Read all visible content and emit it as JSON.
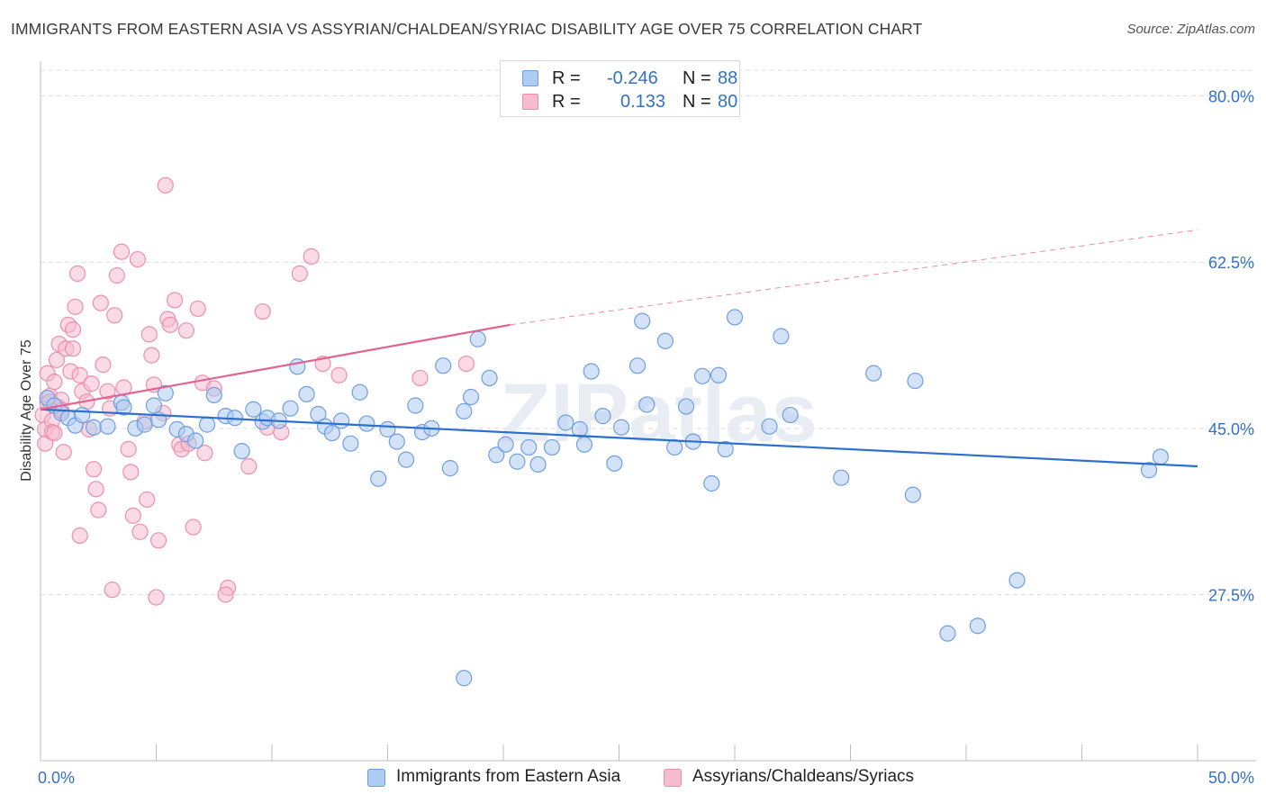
{
  "title": "IMMIGRANTS FROM EASTERN ASIA VS ASSYRIAN/CHALDEAN/SYRIAC DISABILITY AGE OVER 75 CORRELATION CHART",
  "source": "Source: ZipAtlas.com",
  "watermark": "ZIPatlas",
  "legend": {
    "r_label": "R =",
    "n_label": "N =",
    "rows": [
      {
        "r": "-0.246",
        "n": "88"
      },
      {
        "r": "0.133",
        "n": "80"
      }
    ]
  },
  "colors": {
    "blue_fill": "#aecbf1",
    "blue_stroke": "#6f9fe0",
    "blue_line": "#2b6fcf",
    "pink_fill": "#f6bccd",
    "pink_stroke": "#ec8fad",
    "pink_line": "#e2638f",
    "axis_text": "#3371c6",
    "grid": "#dcdcdc"
  },
  "chart_data": {
    "type": "scatter",
    "xlabel": "",
    "ylabel": "Disability Age Over 75",
    "xlim": [
      0,
      50
    ],
    "ylim": [
      10,
      83
    ],
    "x_tick_labels": [
      "0.0%",
      "50.0%"
    ],
    "y_ticks": [
      27.5,
      45.0,
      62.5,
      80.0
    ],
    "y_tick_labels": [
      "27.5%",
      "45.0%",
      "62.5%",
      "80.0%"
    ],
    "grid": "horizontal dashed",
    "legend_position": "top-center and bottom",
    "series": [
      {
        "name": "Immigrants from Eastern Asia",
        "r": -0.246,
        "n": 88,
        "trend": {
          "x0": 0,
          "y0": 47.0,
          "x1": 50,
          "y1": 41.0,
          "style": "solid"
        },
        "points": [
          [
            0.3,
            48.2
          ],
          [
            0.6,
            47.4
          ],
          [
            0.9,
            46.6
          ],
          [
            1.2,
            46.1
          ],
          [
            1.5,
            45.3
          ],
          [
            1.8,
            46.4
          ],
          [
            2.3,
            45.1
          ],
          [
            2.9,
            45.2
          ],
          [
            3.5,
            47.7
          ],
          [
            3.6,
            47.2
          ],
          [
            4.1,
            45.0
          ],
          [
            4.5,
            45.4
          ],
          [
            4.9,
            47.4
          ],
          [
            5.1,
            45.9
          ],
          [
            5.4,
            48.7
          ],
          [
            5.9,
            44.9
          ],
          [
            6.3,
            44.4
          ],
          [
            6.7,
            43.7
          ],
          [
            7.2,
            45.4
          ],
          [
            7.5,
            48.5
          ],
          [
            8.0,
            46.3
          ],
          [
            8.4,
            46.1
          ],
          [
            8.7,
            42.6
          ],
          [
            9.2,
            47.0
          ],
          [
            9.6,
            45.7
          ],
          [
            9.8,
            46.1
          ],
          [
            10.3,
            45.8
          ],
          [
            10.8,
            47.1
          ],
          [
            11.1,
            51.5
          ],
          [
            11.5,
            48.6
          ],
          [
            12.0,
            46.5
          ],
          [
            12.3,
            45.2
          ],
          [
            12.6,
            44.5
          ],
          [
            13.0,
            45.8
          ],
          [
            13.4,
            43.4
          ],
          [
            13.8,
            48.8
          ],
          [
            14.1,
            45.5
          ],
          [
            14.6,
            39.7
          ],
          [
            15.0,
            44.9
          ],
          [
            15.4,
            43.6
          ],
          [
            15.8,
            41.7
          ],
          [
            16.2,
            47.4
          ],
          [
            16.5,
            44.6
          ],
          [
            16.9,
            45.0
          ],
          [
            17.4,
            51.6
          ],
          [
            17.7,
            40.8
          ],
          [
            18.3,
            46.8
          ],
          [
            18.6,
            48.3
          ],
          [
            18.9,
            54.4
          ],
          [
            19.4,
            50.3
          ],
          [
            19.7,
            42.2
          ],
          [
            20.1,
            43.3
          ],
          [
            20.6,
            41.5
          ],
          [
            21.1,
            43.0
          ],
          [
            21.5,
            41.2
          ],
          [
            22.1,
            43.0
          ],
          [
            22.7,
            45.6
          ],
          [
            23.3,
            44.9
          ],
          [
            23.5,
            43.3
          ],
          [
            23.8,
            51.0
          ],
          [
            24.3,
            46.3
          ],
          [
            24.8,
            41.3
          ],
          [
            25.1,
            45.1
          ],
          [
            25.8,
            51.6
          ],
          [
            26.0,
            56.3
          ],
          [
            26.2,
            47.5
          ],
          [
            27.0,
            54.2
          ],
          [
            27.4,
            43.0
          ],
          [
            27.9,
            47.3
          ],
          [
            28.2,
            43.6
          ],
          [
            28.6,
            50.5
          ],
          [
            29.0,
            39.2
          ],
          [
            29.3,
            50.6
          ],
          [
            29.6,
            42.8
          ],
          [
            30.0,
            56.7
          ],
          [
            31.5,
            45.2
          ],
          [
            32.0,
            54.7
          ],
          [
            32.4,
            46.4
          ],
          [
            34.6,
            39.8
          ],
          [
            36.0,
            50.8
          ],
          [
            37.7,
            38.0
          ],
          [
            37.8,
            50.0
          ],
          [
            39.2,
            23.4
          ],
          [
            42.2,
            29.0
          ],
          [
            47.9,
            40.6
          ],
          [
            48.4,
            42.0
          ],
          [
            18.3,
            18.7
          ],
          [
            40.5,
            24.2
          ]
        ]
      },
      {
        "name": "Assyrians/Chaldeans/Syriacs",
        "r": 0.133,
        "n": 80,
        "trend": {
          "x0": 0,
          "y0": 47.0,
          "x1": 20.3,
          "y1": 55.9,
          "x_ext": 50,
          "y_ext": 65.9,
          "style": "solid then dashed"
        },
        "points": [
          [
            0.1,
            46.4
          ],
          [
            0.2,
            44.9
          ],
          [
            0.2,
            43.4
          ],
          [
            0.3,
            47.7
          ],
          [
            0.3,
            50.8
          ],
          [
            0.4,
            48.4
          ],
          [
            0.4,
            47.8
          ],
          [
            0.5,
            45.8
          ],
          [
            0.5,
            44.6
          ],
          [
            0.6,
            44.5
          ],
          [
            0.6,
            49.9
          ],
          [
            0.7,
            52.2
          ],
          [
            0.8,
            53.9
          ],
          [
            0.8,
            47.2
          ],
          [
            0.9,
            48.0
          ],
          [
            0.9,
            46.9
          ],
          [
            1.0,
            42.5
          ],
          [
            1.1,
            53.4
          ],
          [
            1.2,
            55.9
          ],
          [
            1.3,
            51.0
          ],
          [
            1.4,
            55.4
          ],
          [
            1.4,
            53.4
          ],
          [
            1.5,
            57.8
          ],
          [
            1.6,
            61.3
          ],
          [
            1.7,
            50.6
          ],
          [
            1.8,
            48.9
          ],
          [
            2.0,
            47.8
          ],
          [
            2.1,
            44.9
          ],
          [
            2.2,
            49.7
          ],
          [
            2.3,
            40.7
          ],
          [
            2.4,
            38.6
          ],
          [
            2.5,
            36.4
          ],
          [
            2.6,
            58.2
          ],
          [
            2.7,
            51.7
          ],
          [
            2.9,
            48.9
          ],
          [
            3.0,
            47.1
          ],
          [
            3.2,
            56.9
          ],
          [
            3.3,
            61.1
          ],
          [
            3.5,
            63.6
          ],
          [
            3.6,
            49.3
          ],
          [
            3.8,
            42.8
          ],
          [
            3.9,
            40.4
          ],
          [
            4.0,
            35.8
          ],
          [
            4.2,
            62.8
          ],
          [
            4.3,
            34.1
          ],
          [
            4.5,
            45.7
          ],
          [
            4.6,
            37.5
          ],
          [
            4.7,
            54.9
          ],
          [
            4.8,
            52.7
          ],
          [
            4.9,
            49.6
          ],
          [
            5.1,
            33.2
          ],
          [
            5.3,
            46.6
          ],
          [
            5.4,
            70.6
          ],
          [
            5.5,
            56.5
          ],
          [
            5.6,
            55.9
          ],
          [
            5.8,
            58.5
          ],
          [
            6.0,
            43.3
          ],
          [
            6.1,
            42.8
          ],
          [
            6.3,
            55.3
          ],
          [
            6.4,
            43.4
          ],
          [
            6.6,
            34.6
          ],
          [
            6.8,
            57.6
          ],
          [
            7.0,
            49.8
          ],
          [
            7.1,
            42.4
          ],
          [
            7.5,
            49.2
          ],
          [
            8.1,
            28.2
          ],
          [
            9.0,
            41.0
          ],
          [
            9.6,
            57.3
          ],
          [
            9.8,
            45.1
          ],
          [
            10.4,
            44.6
          ],
          [
            11.2,
            61.3
          ],
          [
            11.7,
            63.1
          ],
          [
            12.2,
            51.8
          ],
          [
            12.9,
            50.6
          ],
          [
            16.4,
            50.3
          ],
          [
            18.4,
            51.8
          ],
          [
            3.1,
            28.0
          ],
          [
            5.0,
            27.2
          ],
          [
            8.0,
            27.5
          ],
          [
            1.7,
            33.7
          ]
        ]
      }
    ]
  }
}
